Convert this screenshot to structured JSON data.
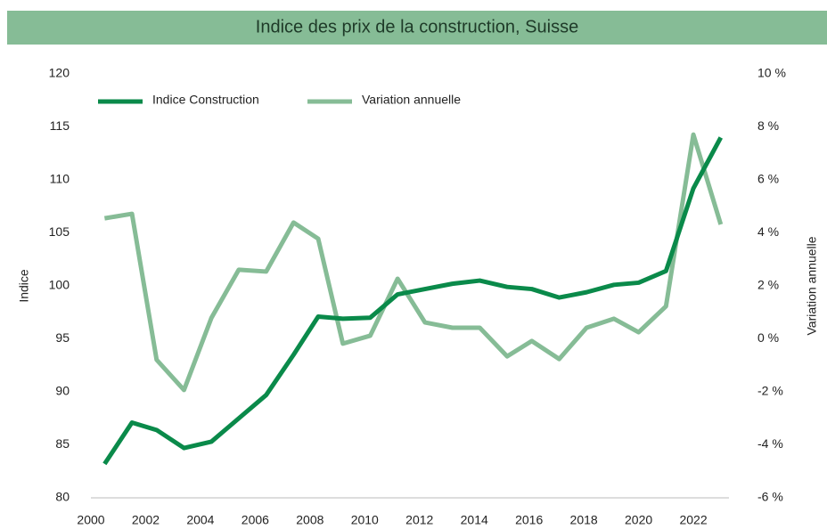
{
  "chart_data": {
    "type": "line",
    "title": "Indice des prix de la construction, Suisse",
    "y_label": "Indice",
    "y2_label": "Variation annuelle",
    "x": [
      2000.5,
      2001.5,
      2002.4,
      2003.4,
      2004.4,
      2005.4,
      2006.4,
      2007.4,
      2008.3,
      2009.2,
      2010.2,
      2011.2,
      2012.2,
      2013.2,
      2014.2,
      2015.2,
      2016.1,
      2017.1,
      2018.1,
      2019.1,
      2020.0,
      2021.0,
      2022.0,
      2023.0
    ],
    "series": [
      {
        "name": "Indice Construction",
        "color": "#0a8a4a",
        "values": [
          83.2,
          87.1,
          86.4,
          84.7,
          85.3,
          87.5,
          89.7,
          93.5,
          97.1,
          96.9,
          97.0,
          99.2,
          99.7,
          100.2,
          100.5,
          99.9,
          99.7,
          98.9,
          99.4,
          100.1,
          100.3,
          101.4,
          109.2,
          114.0
        ]
      },
      {
        "name": "Variation annuelle",
        "color": "#86bc96",
        "axis": "y2",
        "values": [
          4.55,
          4.72,
          -0.79,
          -1.93,
          0.79,
          2.61,
          2.54,
          4.39,
          3.78,
          -0.18,
          0.12,
          2.27,
          0.62,
          0.42,
          0.42,
          -0.66,
          -0.08,
          -0.76,
          0.42,
          0.76,
          0.25,
          1.23,
          7.71,
          4.32
        ]
      }
    ],
    "xlim": [
      2000,
      2023.3
    ],
    "xticks": [
      2000,
      2002,
      2004,
      2006,
      2008,
      2010,
      2012,
      2014,
      2016,
      2018,
      2020,
      2022
    ],
    "ylim": [
      80,
      120
    ],
    "yticks": [
      80,
      85,
      90,
      95,
      100,
      105,
      110,
      115,
      120
    ],
    "y2lim": [
      -6,
      10
    ],
    "y2ticks": [
      {
        "value": -6,
        "label": "-6 %"
      },
      {
        "value": -4,
        "label": "-4 %"
      },
      {
        "value": -2,
        "label": "-2 %"
      },
      {
        "value": 0,
        "label": "0 %"
      },
      {
        "value": 2,
        "label": "2 %"
      },
      {
        "value": 4,
        "label": "4 %"
      },
      {
        "value": 6,
        "label": "6 %"
      },
      {
        "value": 8,
        "label": "8 %"
      },
      {
        "value": 10,
        "label": "10 %"
      }
    ],
    "grid": false,
    "legend": "top-left",
    "banner_color": "#86bc96"
  }
}
